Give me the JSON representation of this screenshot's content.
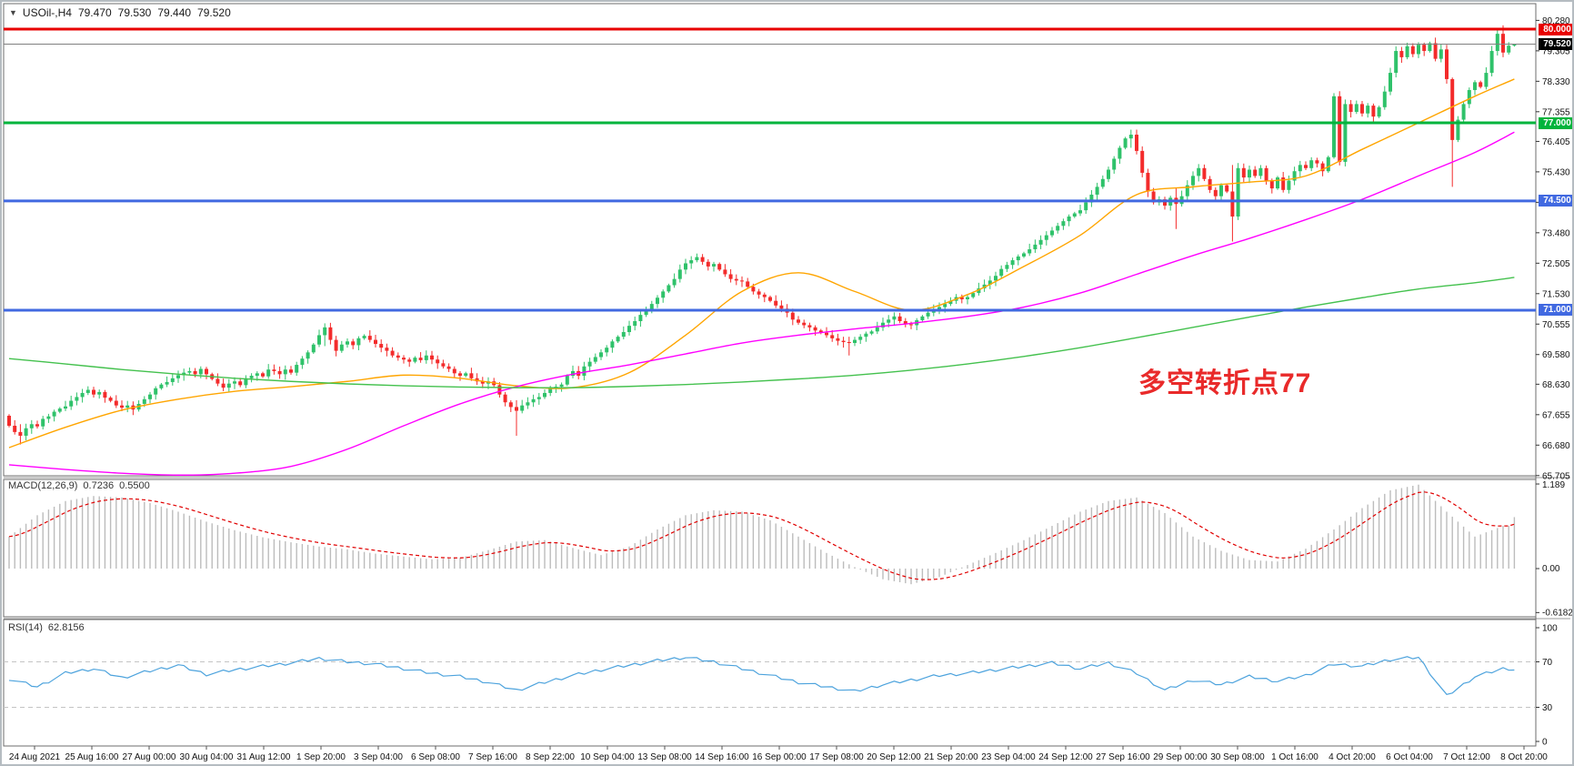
{
  "window": {
    "symbol_period": "USOil-,H4",
    "ohlc_open": "79.470",
    "ohlc_high": "79.530",
    "ohlc_low": "79.440",
    "ohlc_close": "79.520"
  },
  "annotation": {
    "text": "多空转折点77",
    "color": "#e92a2a"
  },
  "macd_panel": {
    "label": "MACD(12,26,9)",
    "main_value": "0.7236",
    "signal_value": "0.5500",
    "axis_top": "1.189",
    "axis_zero": "0.00",
    "axis_bottom": "-0.6182"
  },
  "rsi_panel": {
    "label": "RSI(14)",
    "value": "62.8156",
    "axis_labels": [
      "100",
      "70",
      "30",
      "0"
    ]
  },
  "colors": {
    "candle_up": "#2fc26a",
    "candle_down": "#f32b2b",
    "ma_fast": "#ffa500",
    "ma_mid": "#ff00ff",
    "ma_slow": "#44c14e",
    "level_red": "#e80000",
    "level_green": "#00b43c",
    "level_blue": "#4169e1",
    "current_line": "#808080",
    "current_badge_bg": "#000000",
    "macd_hist": "#bcbcbc",
    "macd_signal": "#e00000",
    "rsi_line": "#4da3dd",
    "rsi_dash": "#c4c4c4",
    "border": "#6e6e6e"
  },
  "chart_data": {
    "type": "candlestick",
    "title": "USOil-,H4",
    "timeframe": "H4",
    "legend_position": "top-left",
    "grid": false,
    "current_bar": {
      "open": 79.47,
      "high": 79.53,
      "low": 79.44,
      "close": 79.52
    },
    "first_open": 67.62,
    "closes": [
      67.3,
      67.1,
      66.98,
      67.22,
      67.35,
      67.28,
      67.52,
      67.6,
      67.75,
      67.85,
      67.92,
      68.1,
      68.22,
      68.35,
      68.45,
      68.3,
      68.38,
      68.2,
      68.1,
      67.95,
      67.88,
      67.95,
      67.82,
      68.0,
      68.15,
      68.3,
      68.5,
      68.62,
      68.7,
      68.82,
      68.92,
      69.0,
      69.05,
      68.95,
      69.12,
      68.95,
      68.8,
      68.65,
      68.52,
      68.65,
      68.72,
      68.6,
      68.82,
      68.9,
      68.98,
      68.88,
      69.1,
      69.05,
      68.95,
      69.1,
      69.0,
      69.25,
      69.45,
      69.65,
      69.9,
      70.2,
      70.45,
      70.05,
      69.7,
      69.9,
      70.0,
      69.88,
      70.1,
      70.18,
      70.05,
      69.92,
      69.8,
      69.7,
      69.55,
      69.48,
      69.42,
      69.35,
      69.48,
      69.4,
      69.55,
      69.42,
      69.3,
      69.2,
      69.12,
      68.98,
      68.9,
      68.98,
      68.82,
      68.72,
      68.65,
      68.72,
      68.6,
      68.3,
      68.05,
      67.9,
      67.78,
      67.95,
      68.05,
      68.15,
      68.22,
      68.35,
      68.48,
      68.55,
      68.62,
      68.9,
      69.05,
      68.9,
      69.2,
      69.35,
      69.5,
      69.65,
      69.8,
      70.0,
      70.15,
      70.3,
      70.5,
      70.65,
      70.85,
      71.0,
      71.2,
      71.4,
      71.6,
      71.8,
      72.0,
      72.3,
      72.5,
      72.6,
      72.7,
      72.55,
      72.4,
      72.48,
      72.3,
      72.15,
      72.0,
      71.95,
      71.92,
      71.75,
      71.6,
      71.5,
      71.42,
      71.3,
      71.15,
      71.05,
      70.92,
      70.7,
      70.6,
      70.52,
      70.45,
      70.35,
      70.28,
      70.2,
      70.1,
      70.02,
      69.98,
      69.95,
      70.05,
      70.15,
      70.25,
      70.32,
      70.45,
      70.6,
      70.7,
      70.8,
      70.65,
      70.55,
      70.52,
      70.68,
      70.8,
      70.92,
      71.02,
      71.1,
      71.2,
      71.3,
      71.42,
      71.35,
      71.42,
      71.55,
      71.7,
      71.82,
      71.95,
      72.1,
      72.32,
      72.45,
      72.6,
      72.72,
      72.82,
      72.95,
      73.1,
      73.25,
      73.4,
      73.55,
      73.7,
      73.85,
      74.0,
      74.1,
      74.2,
      74.45,
      74.7,
      74.95,
      75.2,
      75.5,
      75.85,
      76.2,
      76.5,
      76.62,
      76.1,
      75.4,
      74.8,
      74.45,
      74.55,
      74.35,
      74.6,
      74.4,
      74.65,
      75.0,
      75.3,
      75.55,
      75.2,
      74.85,
      74.65,
      75.0,
      74.8,
      74.0,
      75.55,
      75.25,
      75.5,
      75.3,
      75.55,
      75.15,
      74.9,
      75.25,
      74.85,
      75.15,
      75.45,
      75.65,
      75.55,
      75.8,
      75.7,
      75.45,
      75.9,
      77.85,
      75.75,
      77.6,
      77.35,
      77.6,
      77.3,
      77.55,
      77.2,
      77.5,
      78.0,
      78.6,
      79.3,
      79.1,
      79.45,
      79.2,
      79.5,
      79.3,
      79.55,
      79.05,
      79.35,
      78.4,
      76.45,
      77.1,
      77.6,
      78.05,
      78.3,
      78.15,
      78.6,
      79.3,
      79.85,
      79.25,
      79.47,
      79.52
    ],
    "wick_overrides": {
      "2": [
        66.7,
        67.35
      ],
      "56": [
        69.85,
        70.58
      ],
      "90": [
        66.98,
        68.12
      ],
      "149": [
        69.55,
        70.15
      ],
      "199": [
        76.2,
        76.78
      ],
      "207": [
        73.6,
        74.9
      ],
      "217": [
        73.2,
        75.65
      ],
      "235": [
        75.85,
        77.95
      ],
      "256": [
        74.95,
        78.45
      ],
      "265": [
        79.1,
        80.12
      ],
      "267": [
        79.44,
        79.53
      ]
    },
    "moving_averages": {
      "sample_step": 10,
      "fast_orange": [
        66.6,
        67.25,
        67.8,
        68.15,
        68.4,
        68.55,
        68.72,
        68.92,
        68.82,
        68.58,
        68.52,
        69.0,
        70.2,
        71.6,
        72.2,
        71.6,
        71.0,
        71.5,
        72.4,
        73.4,
        74.7,
        74.95,
        75.1,
        75.3,
        76.15,
        77.0,
        77.85,
        78.4
      ],
      "mid_magenta": [
        66.05,
        65.9,
        65.78,
        65.72,
        65.78,
        66.0,
        66.55,
        67.3,
        68.0,
        68.55,
        68.95,
        69.25,
        69.6,
        69.95,
        70.2,
        70.4,
        70.58,
        70.8,
        71.1,
        71.55,
        72.15,
        72.75,
        73.3,
        73.9,
        74.55,
        75.3,
        76.05,
        76.7
      ],
      "slow_green": [
        69.45,
        69.28,
        69.1,
        68.95,
        68.82,
        68.72,
        68.64,
        68.58,
        68.54,
        68.52,
        68.52,
        68.56,
        68.62,
        68.7,
        68.8,
        68.92,
        69.08,
        69.28,
        69.52,
        69.8,
        70.12,
        70.45,
        70.78,
        71.1,
        71.4,
        71.68,
        71.88,
        72.05
      ]
    },
    "horizontal_levels": [
      {
        "price": 80.0,
        "label": "80.000",
        "color": "#e80000",
        "width": 3
      },
      {
        "price": 77.0,
        "label": "77.000",
        "color": "#00b43c",
        "width": 3
      },
      {
        "price": 74.5,
        "label": "74.500",
        "color": "#4169e1",
        "width": 3
      },
      {
        "price": 71.0,
        "label": "71.000",
        "color": "#4169e1",
        "width": 3
      }
    ],
    "current_price": {
      "value": 79.52,
      "label": "79.520"
    },
    "price_axis_ticks": [
      "80.280",
      "79.305",
      "78.330",
      "77.355",
      "76.405",
      "75.430",
      "74.455",
      "73.480",
      "72.505",
      "71.530",
      "70.555",
      "69.580",
      "68.630",
      "67.655",
      "66.680",
      "65.705"
    ],
    "macd": {
      "sample_step": 5,
      "values": [
        0.45,
        0.75,
        0.95,
        1.02,
        1.0,
        0.92,
        0.8,
        0.66,
        0.54,
        0.44,
        0.37,
        0.31,
        0.27,
        0.21,
        0.17,
        0.13,
        0.15,
        0.26,
        0.38,
        0.4,
        0.29,
        0.19,
        0.31,
        0.55,
        0.75,
        0.82,
        0.8,
        0.68,
        0.45,
        0.22,
        0.02,
        -0.15,
        -0.22,
        -0.12,
        0.05,
        0.22,
        0.4,
        0.6,
        0.8,
        0.95,
        1.0,
        0.78,
        0.45,
        0.25,
        0.12,
        0.1,
        0.28,
        0.55,
        0.85,
        1.1,
        1.18,
        0.8,
        0.45,
        0.6
      ],
      "last_value": 0.7236,
      "signal_last_value": 0.55,
      "axis": {
        "top": 1.189,
        "zero": 0.0,
        "bottom": -0.6182
      }
    },
    "rsi": {
      "sample_step": 5,
      "values": [
        55,
        48,
        60,
        64,
        56,
        62,
        67,
        59,
        63,
        66,
        69,
        73,
        70,
        68,
        64,
        60,
        57,
        52,
        45,
        52,
        58,
        63,
        67,
        71,
        74,
        70,
        64,
        58,
        52,
        48,
        44,
        50,
        54,
        58,
        60,
        63,
        66,
        69,
        64,
        69,
        60,
        45,
        54,
        50,
        57,
        53,
        58,
        68,
        66,
        72,
        74,
        40,
        57,
        64
      ],
      "last_value": 62.8156,
      "overbought": 70,
      "oversold": 30,
      "range": [
        0,
        100
      ]
    },
    "x_labels": [
      "24 Aug 2021",
      "25 Aug 16:00",
      "27 Aug 00:00",
      "30 Aug 04:00",
      "31 Aug 12:00",
      "1 Sep 20:00",
      "3 Sep 04:00",
      "6 Sep 08:00",
      "7 Sep 16:00",
      "8 Sep 22:00",
      "10 Sep 04:00",
      "13 Sep 08:00",
      "14 Sep 16:00",
      "16 Sep 00:00",
      "17 Sep 08:00",
      "20 Sep 12:00",
      "21 Sep 20:00",
      "23 Sep 04:00",
      "24 Sep 12:00",
      "27 Sep 16:00",
      "29 Sep 00:00",
      "30 Sep 08:00",
      "1 Oct 16:00",
      "4 Oct 20:00",
      "6 Oct 04:00",
      "7 Oct 12:00",
      "8 Oct 20:00"
    ]
  }
}
